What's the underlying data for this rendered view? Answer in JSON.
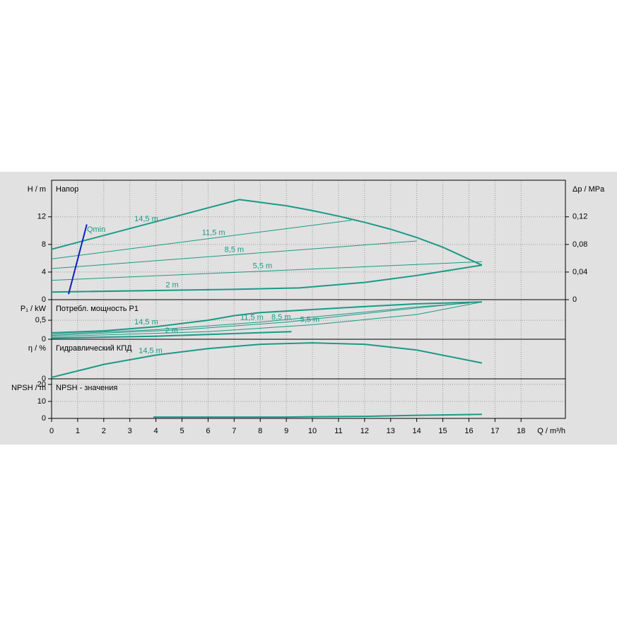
{
  "chart_data": [
    {
      "type": "line",
      "title": "Напор",
      "ylabel": "H / m",
      "y2label": "Δp / MPa",
      "xlim": [
        0,
        19.7
      ],
      "ylim": [
        0,
        17.3
      ],
      "yticks": [
        0,
        4,
        8,
        12
      ],
      "y2lim": [
        0,
        0.173
      ],
      "y2ticks": [
        0,
        {
          "value": 0.04,
          "label": "0,04"
        },
        {
          "value": 0.08,
          "label": "0,08"
        },
        {
          "value": 0.12,
          "label": "0,12"
        }
      ],
      "grid": true,
      "series": [
        {
          "name": "14,5 m",
          "color": "#1a9a86",
          "linewidth": 2,
          "x": [
            0,
            7.2,
            8,
            9,
            10,
            11,
            12,
            13,
            14,
            15,
            16.5
          ],
          "values": [
            7.3,
            14.5,
            14.1,
            13.6,
            12.9,
            12.1,
            11.2,
            10.2,
            9,
            7.6,
            5
          ]
        },
        {
          "name": "11,5 m",
          "color": "#1a9a86",
          "linewidth": 1,
          "x": [
            0,
            11.5
          ],
          "values": [
            5.9,
            11.5
          ]
        },
        {
          "name": "8,5 m",
          "color": "#1a9a86",
          "linewidth": 1,
          "x": [
            0,
            14
          ],
          "values": [
            4.5,
            8.5
          ]
        },
        {
          "name": "5,5 m",
          "color": "#1a9a86",
          "linewidth": 1,
          "x": [
            0,
            16.5
          ],
          "values": [
            2.8,
            5.5
          ]
        },
        {
          "name": "2 m",
          "color": "#1a9a86",
          "linewidth": 2,
          "x": [
            0,
            7,
            9.5,
            12,
            14,
            16.5
          ],
          "values": [
            1.1,
            1.5,
            1.7,
            2.5,
            3.5,
            5
          ]
        },
        {
          "name": "Qmin",
          "color": "#1020c0",
          "linewidth": 2,
          "x": [
            0.65,
            1.35
          ],
          "values": [
            0.8,
            10.9
          ]
        }
      ]
    },
    {
      "type": "line",
      "title": "Потребл. мощность P1",
      "ylabel": "P₁ / kW",
      "xlim": [
        0,
        19.7
      ],
      "ylim": [
        0,
        1.04
      ],
      "yticks": [
        0,
        {
          "value": 0.5,
          "label": "0,5"
        }
      ],
      "grid": true,
      "series": [
        {
          "name": "14,5 m",
          "color": "#1a9a86",
          "linewidth": 2,
          "x": [
            0,
            2,
            4,
            6,
            7,
            8,
            10,
            12,
            14,
            16.5
          ],
          "values": [
            0.17,
            0.22,
            0.33,
            0.5,
            0.62,
            0.7,
            0.78,
            0.86,
            0.93,
            0.98
          ]
        },
        {
          "name": "11,5 m",
          "color": "#1a9a86",
          "linewidth": 1,
          "x": [
            0,
            4,
            8,
            11.5,
            14,
            16
          ],
          "values": [
            0.13,
            0.25,
            0.45,
            0.68,
            0.85,
            0.95
          ]
        },
        {
          "name": "8,5 m",
          "color": "#1a9a86",
          "linewidth": 1,
          "x": [
            0,
            5,
            9,
            13,
            16
          ],
          "values": [
            0.1,
            0.25,
            0.45,
            0.75,
            0.96
          ]
        },
        {
          "name": "5,5 m",
          "color": "#1a9a86",
          "linewidth": 1,
          "x": [
            0,
            6,
            10,
            14,
            16.5
          ],
          "values": [
            0.07,
            0.2,
            0.38,
            0.65,
            0.98
          ]
        },
        {
          "name": "2 m",
          "color": "#1a9a86",
          "linewidth": 2,
          "x": [
            0,
            4,
            9.2
          ],
          "values": [
            0.03,
            0.08,
            0.2
          ]
        }
      ]
    },
    {
      "type": "line",
      "title": "Гидравлический КПД",
      "ylabel": "η / %",
      "xlim": [
        0,
        19.7
      ],
      "ylim": [
        0,
        55
      ],
      "yticks": [
        0
      ],
      "grid": true,
      "series": [
        {
          "name": "14,5 m",
          "color": "#1a9a86",
          "linewidth": 2,
          "x": [
            0,
            2,
            4,
            6,
            8,
            10,
            12,
            14,
            16.5
          ],
          "values": [
            2,
            20,
            33,
            42,
            48,
            50,
            48,
            40,
            22
          ]
        }
      ]
    },
    {
      "type": "line",
      "title": "NPSH - значения",
      "ylabel": "NPSH / m",
      "xlabel": "Q / m³/h",
      "xlim": [
        0,
        19.7
      ],
      "ylim": [
        0,
        23.3
      ],
      "yticks": [
        0,
        10,
        20
      ],
      "xticks": [
        0,
        1,
        2,
        3,
        4,
        5,
        6,
        7,
        8,
        9,
        10,
        11,
        12,
        13,
        14,
        15,
        16,
        17,
        18
      ],
      "grid": true,
      "series": [
        {
          "color": "#1a9a86",
          "linewidth": 2,
          "x": [
            3.9,
            6,
            9,
            10,
            12,
            14,
            16.5
          ],
          "values": [
            0.8,
            0.8,
            0.8,
            1,
            1.2,
            1.8,
            2.4
          ]
        }
      ]
    }
  ]
}
